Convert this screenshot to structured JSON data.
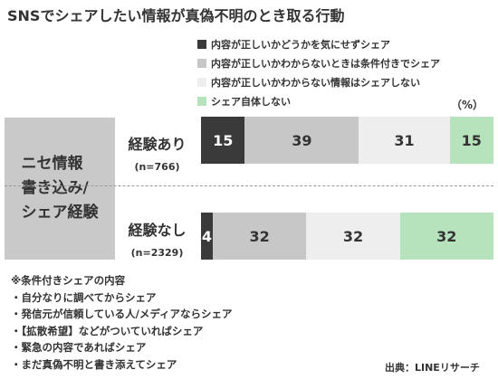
{
  "colors": {
    "dark": "#3a3a3a",
    "mid": "#c7c7c7",
    "light": "#eeeeee",
    "green": "#b6e3bb",
    "side_box": "#c9c9c9"
  },
  "chart_data": {
    "type": "bar",
    "orientation": "horizontal",
    "stacked": true,
    "title": "SNSでシェアしたい情報が真偽不明のとき取る行動",
    "unit": "（%）",
    "side_label": "ニセ情報\n書き込み/\nシェア経験",
    "categories": [
      {
        "label": "経験あり",
        "n": "(n=766)"
      },
      {
        "label": "経験なし",
        "n": "(n=2329)"
      }
    ],
    "series": [
      {
        "name": "内容が正しいかどうかを気にせずシェア",
        "color": "#3a3a3a",
        "text_color": "#ffffff",
        "values": [
          15,
          4
        ]
      },
      {
        "name": "内容が正しいかわからないときは条件付きでシェア",
        "color": "#c7c7c7",
        "text_color": "#333333",
        "values": [
          39,
          32
        ]
      },
      {
        "name": "内容が正しいかわからない情報はシェアしない",
        "color": "#eeeeee",
        "text_color": "#333333",
        "values": [
          31,
          32
        ]
      },
      {
        "name": "シェア自体しない",
        "color": "#b6e3bb",
        "text_color": "#333333",
        "values": [
          15,
          32
        ]
      }
    ],
    "legend_position": "top-right",
    "grid": false
  },
  "notes": {
    "lines": [
      "※条件付きシェアの内容",
      "・自分なりに調べてからシェア",
      "・発信元が信頼している人/メディアならシェア",
      "・【拡散希望】などがついていればシェア",
      "・緊急の内容であればシェア",
      "・まだ真偽不明と書き添えてシェア"
    ]
  },
  "source": "出典：LINEリサーチ"
}
